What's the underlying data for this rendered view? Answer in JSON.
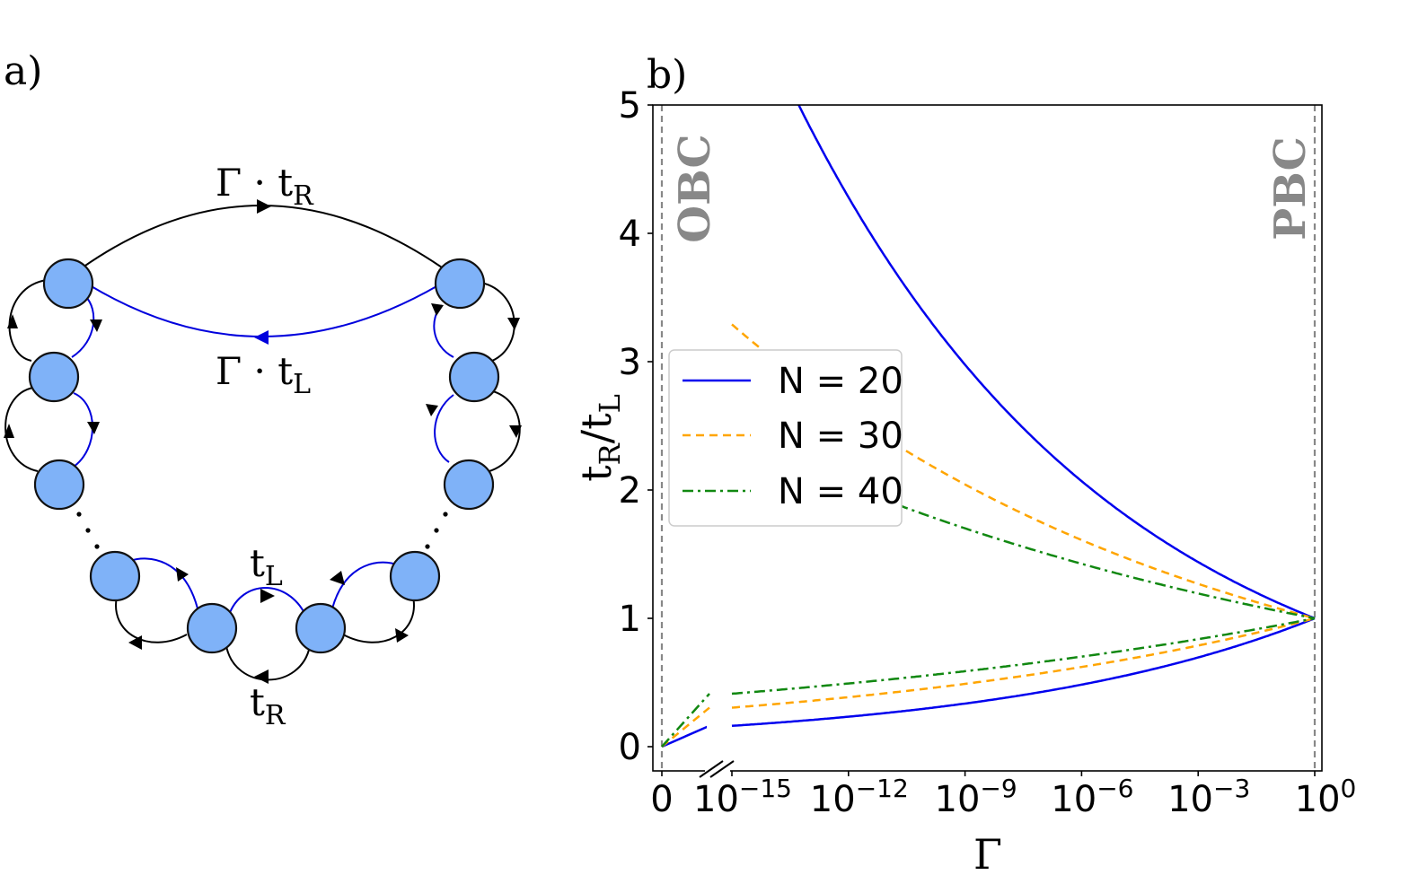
{
  "panel_a": {
    "label": "a)",
    "top_label_main": "Γ · t",
    "top_label_sub": "R",
    "bottom_label_main": "Γ · t",
    "bottom_label_sub": "L",
    "tl_label_main": "t",
    "tl_label_sub": "L",
    "tr_label_main": "t",
    "tr_label_sub": "R",
    "colors": {
      "node": "#7fb2f8",
      "blue_link": "#0000dd",
      "black_link": "#000000"
    }
  },
  "chart_data": {
    "type": "line",
    "panel_label": "b)",
    "title": "",
    "xlabel": "Γ",
    "ylabel_main": "t",
    "ylabel_sub_R": "R",
    "ylabel_sub_L": "L",
    "ylim": [
      0,
      5
    ],
    "xlim_log10": [
      -15,
      0
    ],
    "y_ticks": [
      "0",
      "1",
      "2",
      "3",
      "4",
      "5"
    ],
    "x_ticks": [
      {
        "label": "0",
        "exp": ""
      },
      {
        "label": "10",
        "exp": "−15"
      },
      {
        "label": "10",
        "exp": "−12"
      },
      {
        "label": "10",
        "exp": "−9"
      },
      {
        "label": "10",
        "exp": "−6"
      },
      {
        "label": "10",
        "exp": "−3"
      },
      {
        "label": "10",
        "exp": "0"
      }
    ],
    "annotations": {
      "left": "OBC",
      "right": "PBC"
    },
    "legend": {
      "placement": "center-left",
      "entries": [
        "N = 20",
        "N = 30",
        "N = 40"
      ]
    },
    "series": [
      {
        "name": "N = 20",
        "N": 20,
        "color": "#0000ee",
        "style": "solid"
      },
      {
        "name": "N = 30",
        "N": 30,
        "color": "#ffa500",
        "style": "dashed"
      },
      {
        "name": "N = 40",
        "N": 40,
        "color": "#118811",
        "style": "dashdot"
      }
    ]
  }
}
